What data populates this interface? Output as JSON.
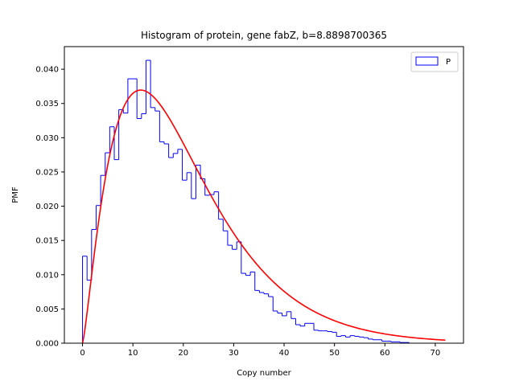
{
  "chart_data": {
    "type": "histogram",
    "title": "Histogram of protein, gene fabZ, b=8.8898700365",
    "xlabel": "Copy number",
    "ylabel": "PMF",
    "xlim": [
      -3.6,
      75.6
    ],
    "ylim": [
      0,
      0.0433
    ],
    "xticks": [
      0,
      10,
      20,
      30,
      40,
      50,
      60,
      70
    ],
    "yticks": [
      0.0,
      0.005,
      0.01,
      0.015,
      0.02,
      0.025,
      0.03,
      0.035,
      0.04
    ],
    "ytick_labels": [
      "0.000",
      "0.005",
      "0.010",
      "0.015",
      "0.020",
      "0.025",
      "0.030",
      "0.035",
      "0.040"
    ],
    "legend": {
      "entries": [
        "P"
      ],
      "placement": "upper right"
    },
    "histogram": {
      "name": "P",
      "color": "#0000ff",
      "bin_edges_start": 0,
      "bin_width": 0.9,
      "values": [
        0.0127,
        0.0092,
        0.0166,
        0.0201,
        0.0245,
        0.0278,
        0.0316,
        0.0268,
        0.0341,
        0.0336,
        0.0386,
        0.0386,
        0.0328,
        0.0335,
        0.0413,
        0.0344,
        0.0339,
        0.0294,
        0.0291,
        0.0271,
        0.0277,
        0.0283,
        0.0238,
        0.0249,
        0.0211,
        0.026,
        0.024,
        0.0216,
        0.0217,
        0.0221,
        0.0181,
        0.0164,
        0.0143,
        0.0137,
        0.0148,
        0.0102,
        0.0099,
        0.0104,
        0.0077,
        0.0074,
        0.0072,
        0.0068,
        0.0047,
        0.0044,
        0.004,
        0.0046,
        0.0036,
        0.0027,
        0.0025,
        0.0029,
        0.0029,
        0.0019,
        0.0018,
        0.0018,
        0.0017,
        0.0016,
        0.001,
        0.0011,
        0.0009,
        0.0011,
        0.001,
        0.0009,
        0.0008,
        0.0006,
        0.0005,
        0.0005,
        0.0003,
        0.0003,
        0.0002,
        0.0002,
        0.0001,
        0.0001
      ]
    },
    "fit_line": {
      "color": "#ff0000",
      "shape": 2.3,
      "scale": 8.8898700365,
      "x_range": [
        0,
        72
      ]
    }
  }
}
